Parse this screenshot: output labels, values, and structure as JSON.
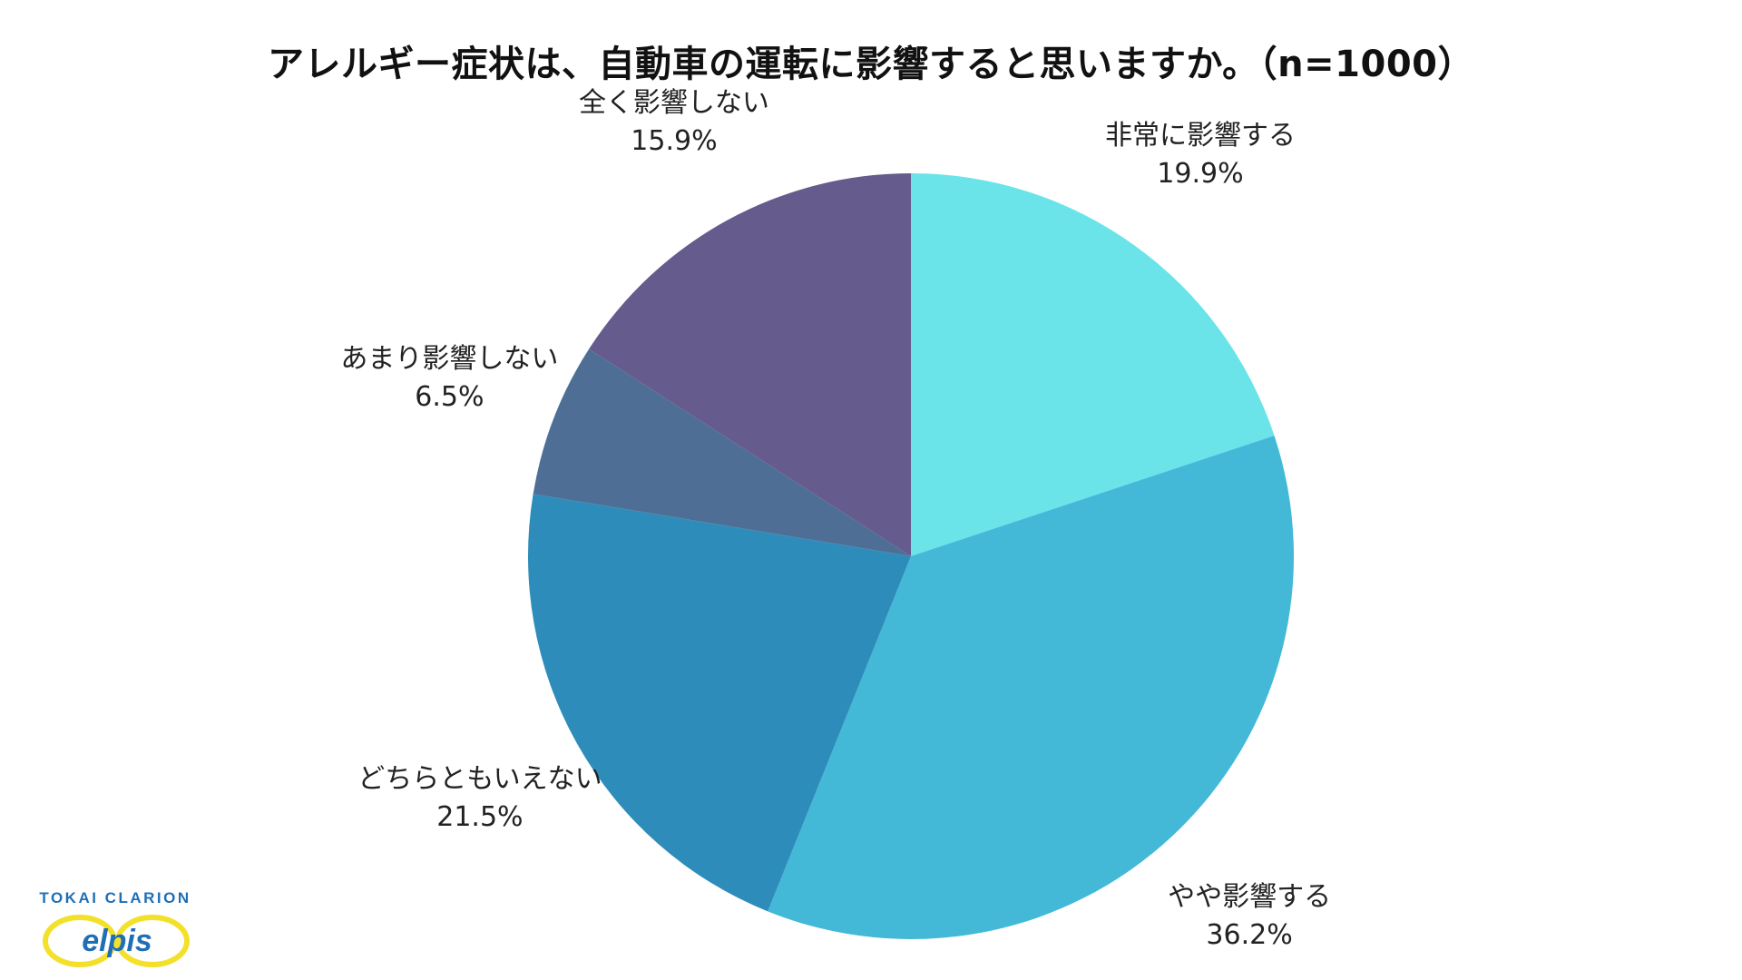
{
  "chart_data": {
    "type": "pie",
    "title": "アレルギー症状は、自動車の運転に影響すると思いますか。（n=1000）",
    "slices": [
      {
        "label": "非常に影響する",
        "value": 19.9,
        "value_label": "19.9%",
        "color": "#6ae4e9"
      },
      {
        "label": "やや影響する",
        "value": 36.2,
        "value_label": "36.2%",
        "color": "#43b8d7"
      },
      {
        "label": "どちらともいえない",
        "value": 21.5,
        "value_label": "21.5%",
        "color": "#2e8cba"
      },
      {
        "label": "あまり影響しない",
        "value": 6.5,
        "value_label": "6.5%",
        "color": "#4f6e96"
      },
      {
        "label": "全く影響しない",
        "value": 15.9,
        "value_label": "15.9%",
        "color": "#655b8d"
      }
    ],
    "start": "12 o'clock",
    "direction": "clockwise",
    "legend": "none"
  },
  "logo": {
    "brand": "TOKAI CLARION",
    "mark": "elpis",
    "ring_color": "#f3e02a",
    "text_color": "#1f6fb6"
  }
}
